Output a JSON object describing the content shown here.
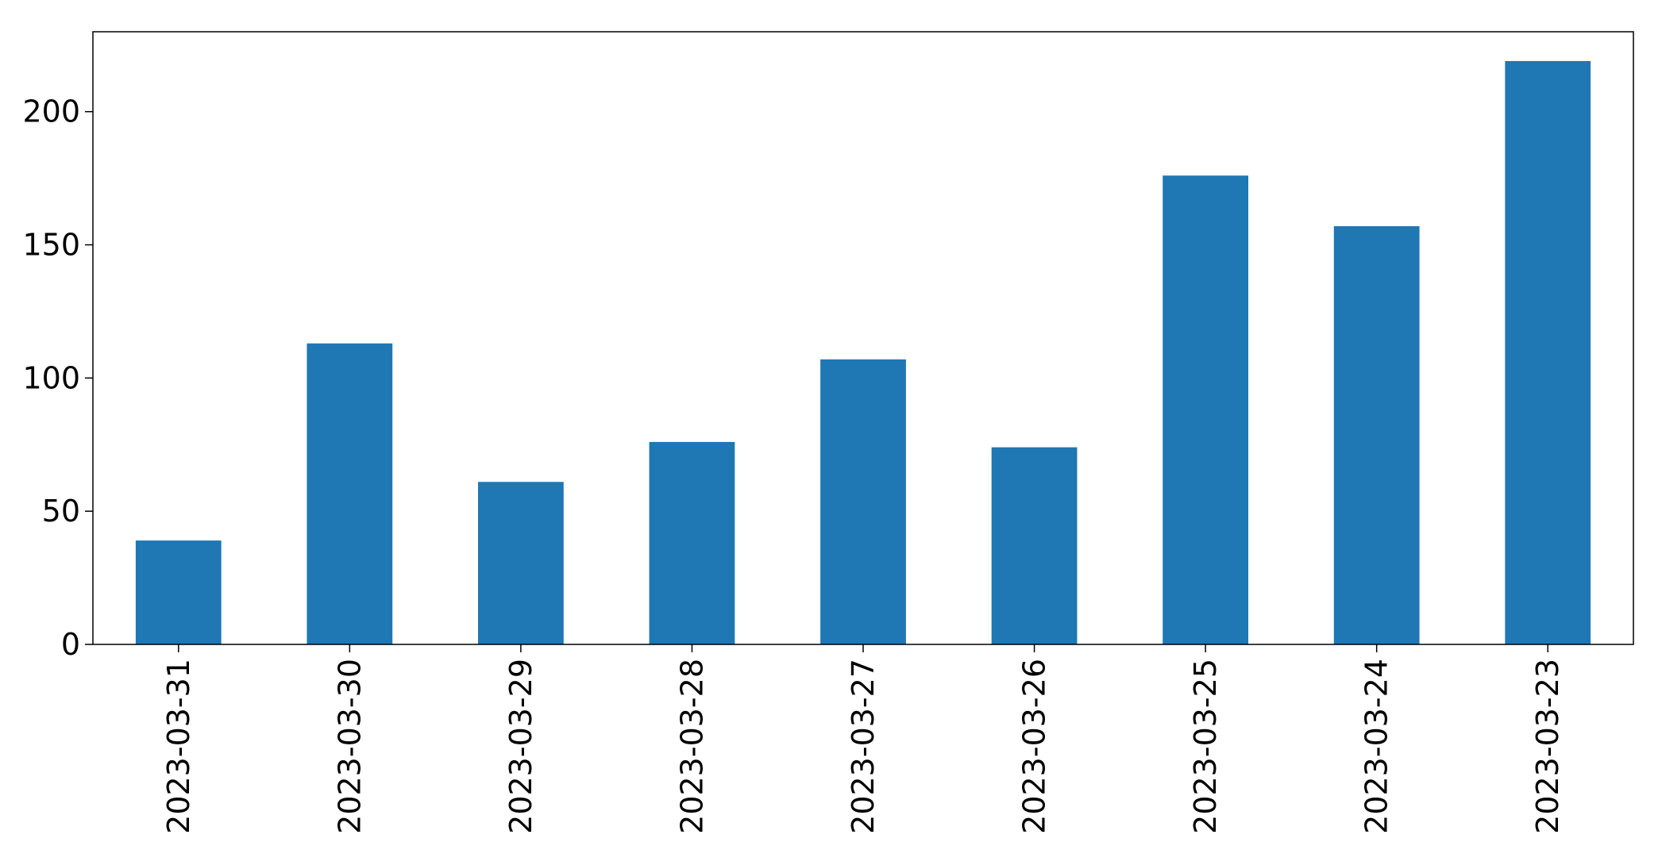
{
  "chart_data": {
    "type": "bar",
    "title": "",
    "xlabel": "",
    "ylabel": "",
    "categories": [
      "2023-03-31",
      "2023-03-30",
      "2023-03-29",
      "2023-03-28",
      "2023-03-27",
      "2023-03-26",
      "2023-03-25",
      "2023-03-24",
      "2023-03-23"
    ],
    "values": [
      39,
      113,
      61,
      76,
      107,
      74,
      176,
      157,
      219
    ],
    "ylim": [
      0,
      230
    ],
    "yticks": [
      0,
      50,
      100,
      150,
      200
    ],
    "bar_color": "#1f77b4",
    "grid": false,
    "legend": "none"
  }
}
